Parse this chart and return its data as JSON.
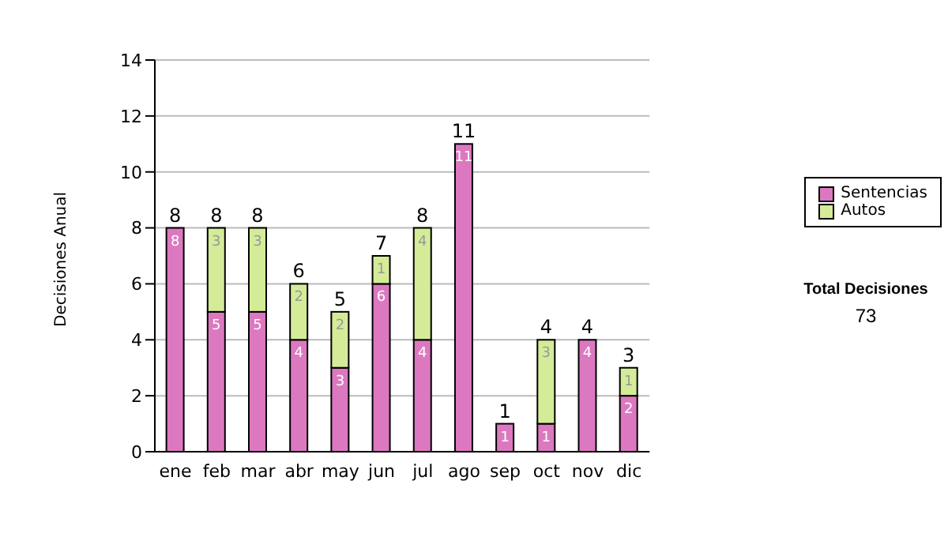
{
  "chart_data": {
    "type": "bar",
    "stacked": true,
    "ylabel": "Decisiones Anual",
    "categories": [
      "ene",
      "feb",
      "mar",
      "abr",
      "may",
      "jun",
      "jul",
      "ago",
      "sep",
      "oct",
      "nov",
      "dic"
    ],
    "series": [
      {
        "name": "Sentencias",
        "color": "#dc78c0",
        "values": [
          8,
          5,
          5,
          4,
          3,
          6,
          4,
          11,
          1,
          1,
          4,
          2
        ],
        "value_labels": [
          "8",
          "5",
          "5",
          "4",
          "3",
          "6",
          "4",
          "11",
          "1",
          "1",
          "4",
          "2"
        ]
      },
      {
        "name": "Autos",
        "color": "#d4ec98",
        "values": [
          0,
          3,
          3,
          2,
          2,
          1,
          4,
          0,
          0,
          3,
          0,
          1
        ],
        "value_labels": [
          null,
          "3",
          "3",
          "2",
          "2",
          "1",
          "4",
          null,
          null,
          "3",
          null,
          "1"
        ]
      }
    ],
    "totals": [
      "8",
      "8",
      "8",
      "6",
      "5",
      "7",
      "8",
      "11",
      "1",
      "4",
      "4",
      "3"
    ],
    "ylim": [
      0,
      14
    ],
    "yticks": [
      0,
      2,
      4,
      6,
      8,
      10,
      12,
      14
    ],
    "grid": "y",
    "legend": "right",
    "annotations": [
      "Total Decisiones",
      "73"
    ]
  }
}
